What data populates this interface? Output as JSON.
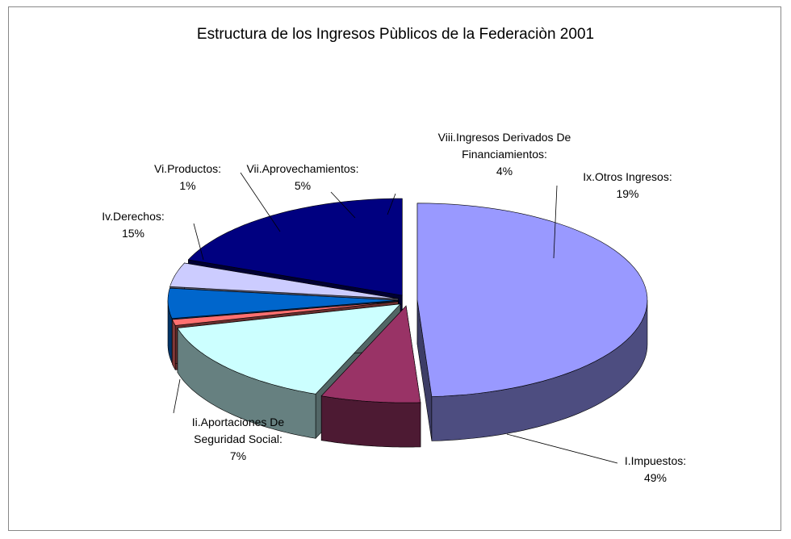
{
  "chart_data": {
    "type": "pie3d",
    "title": "Estructura de los Ingresos Pùblicos de la Federaciòn 2001",
    "categories": [
      "I.Impuestos:",
      "Ii.Aportaciones De Seguridad Social:",
      "Iv.Derechos:",
      "Vi.Productos:",
      "Vii.Aprovechamientos:",
      "Viii.Ingresos Derivados De Financiamientos:",
      "Ix.Otros Ingresos:"
    ],
    "values": [
      49,
      7,
      15,
      1,
      5,
      4,
      19
    ],
    "value_labels": [
      "49%",
      "7%",
      "15%",
      "1%",
      "5%",
      "4%",
      "19%"
    ],
    "colors": [
      "#9999ff",
      "#993366",
      "#ccffff",
      "#ff7070",
      "#0066cc",
      "#ccccff",
      "#000080"
    ]
  }
}
